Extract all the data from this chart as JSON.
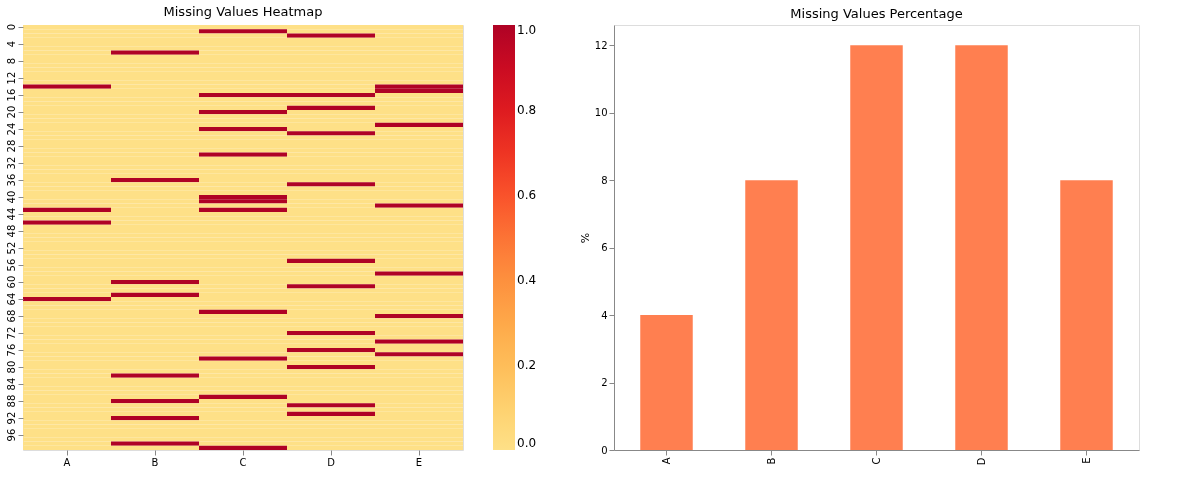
{
  "chart_data": [
    {
      "type": "heatmap",
      "title": "Missing Values Heatmap",
      "categories": [
        "A",
        "B",
        "C",
        "D",
        "E"
      ],
      "y_categories": [
        "0",
        null,
        null,
        null,
        "4",
        null,
        null,
        null,
        "8",
        null,
        null,
        null,
        "12",
        null,
        null,
        null,
        "16",
        null,
        null,
        null,
        "20",
        null,
        null,
        null,
        "24",
        null,
        null,
        null,
        "28",
        null,
        null,
        null,
        "32",
        null,
        null,
        null,
        "36",
        null,
        null,
        null,
        "40",
        null,
        null,
        null,
        "44",
        null,
        null,
        null,
        "48",
        null,
        null,
        null,
        "52",
        null,
        null,
        null,
        "56",
        null,
        null,
        null,
        "60",
        null,
        null,
        null,
        "64",
        null,
        null,
        null,
        "68",
        null,
        null,
        null,
        "72",
        null,
        null,
        null,
        "76",
        null,
        null,
        null,
        "80",
        null,
        null,
        null,
        "84",
        null,
        null,
        null,
        "88",
        null,
        null,
        null,
        "92",
        null,
        null,
        null,
        "96",
        null,
        null,
        null
      ],
      "cells": [
        [
          0,
          0,
          0,
          0,
          0
        ],
        [
          0,
          0,
          1,
          0,
          0
        ],
        [
          0,
          0,
          0,
          1,
          0
        ],
        [
          0,
          0,
          0,
          0,
          0
        ],
        [
          0,
          0,
          0,
          0,
          0
        ],
        [
          0,
          0,
          0,
          0,
          0
        ],
        [
          0,
          1,
          0,
          0,
          0
        ],
        [
          0,
          0,
          0,
          0,
          0
        ],
        [
          0,
          0,
          0,
          0,
          0
        ],
        [
          0,
          0,
          0,
          0,
          0
        ],
        [
          0,
          0,
          0,
          0,
          0
        ],
        [
          0,
          0,
          0,
          0,
          0
        ],
        [
          0,
          0,
          0,
          0,
          0
        ],
        [
          0,
          0,
          0,
          0,
          0
        ],
        [
          1,
          0,
          0,
          0,
          1
        ],
        [
          0,
          0,
          0,
          0,
          1
        ],
        [
          0,
          0,
          1,
          1,
          0
        ],
        [
          0,
          0,
          0,
          0,
          0
        ],
        [
          0,
          0,
          0,
          0,
          0
        ],
        [
          0,
          0,
          0,
          1,
          0
        ],
        [
          0,
          0,
          1,
          0,
          0
        ],
        [
          0,
          0,
          0,
          0,
          0
        ],
        [
          0,
          0,
          0,
          0,
          0
        ],
        [
          0,
          0,
          0,
          0,
          1
        ],
        [
          0,
          0,
          1,
          0,
          0
        ],
        [
          0,
          0,
          0,
          1,
          0
        ],
        [
          0,
          0,
          0,
          0,
          0
        ],
        [
          0,
          0,
          0,
          0,
          0
        ],
        [
          0,
          0,
          0,
          0,
          0
        ],
        [
          0,
          0,
          0,
          0,
          0
        ],
        [
          0,
          0,
          1,
          0,
          0
        ],
        [
          0,
          0,
          0,
          0,
          0
        ],
        [
          0,
          0,
          0,
          0,
          0
        ],
        [
          0,
          0,
          0,
          0,
          0
        ],
        [
          0,
          0,
          0,
          0,
          0
        ],
        [
          0,
          0,
          0,
          0,
          0
        ],
        [
          0,
          1,
          0,
          0,
          0
        ],
        [
          0,
          0,
          0,
          1,
          0
        ],
        [
          0,
          0,
          0,
          0,
          0
        ],
        [
          0,
          0,
          0,
          0,
          0
        ],
        [
          0,
          0,
          1,
          0,
          0
        ],
        [
          0,
          0,
          1,
          0,
          0
        ],
        [
          0,
          0,
          0,
          0,
          1
        ],
        [
          1,
          0,
          1,
          0,
          0
        ],
        [
          0,
          0,
          0,
          0,
          0
        ],
        [
          0,
          0,
          0,
          0,
          0
        ],
        [
          1,
          0,
          0,
          0,
          0
        ],
        [
          0,
          0,
          0,
          0,
          0
        ],
        [
          0,
          0,
          0,
          0,
          0
        ],
        [
          0,
          0,
          0,
          0,
          0
        ],
        [
          0,
          0,
          0,
          0,
          0
        ],
        [
          0,
          0,
          0,
          0,
          0
        ],
        [
          0,
          0,
          0,
          0,
          0
        ],
        [
          0,
          0,
          0,
          0,
          0
        ],
        [
          0,
          0,
          0,
          0,
          0
        ],
        [
          0,
          0,
          0,
          1,
          0
        ],
        [
          0,
          0,
          0,
          0,
          0
        ],
        [
          0,
          0,
          0,
          0,
          0
        ],
        [
          0,
          0,
          0,
          0,
          1
        ],
        [
          0,
          0,
          0,
          0,
          0
        ],
        [
          0,
          1,
          0,
          0,
          0
        ],
        [
          0,
          0,
          0,
          1,
          0
        ],
        [
          0,
          0,
          0,
          0,
          0
        ],
        [
          0,
          1,
          0,
          0,
          0
        ],
        [
          1,
          0,
          0,
          0,
          0
        ],
        [
          0,
          0,
          0,
          0,
          0
        ],
        [
          0,
          0,
          0,
          0,
          0
        ],
        [
          0,
          0,
          1,
          0,
          0
        ],
        [
          0,
          0,
          0,
          0,
          1
        ],
        [
          0,
          0,
          0,
          0,
          0
        ],
        [
          0,
          0,
          0,
          0,
          0
        ],
        [
          0,
          0,
          0,
          0,
          0
        ],
        [
          0,
          0,
          0,
          1,
          0
        ],
        [
          0,
          0,
          0,
          0,
          0
        ],
        [
          0,
          0,
          0,
          0,
          1
        ],
        [
          0,
          0,
          0,
          0,
          0
        ],
        [
          0,
          0,
          0,
          1,
          0
        ],
        [
          0,
          0,
          0,
          0,
          1
        ],
        [
          0,
          0,
          1,
          0,
          0
        ],
        [
          0,
          0,
          0,
          0,
          0
        ],
        [
          0,
          0,
          0,
          1,
          0
        ],
        [
          0,
          0,
          0,
          0,
          0
        ],
        [
          0,
          1,
          0,
          0,
          0
        ],
        [
          0,
          0,
          0,
          0,
          0
        ],
        [
          0,
          0,
          0,
          0,
          0
        ],
        [
          0,
          0,
          0,
          0,
          0
        ],
        [
          0,
          0,
          0,
          0,
          0
        ],
        [
          0,
          0,
          1,
          0,
          0
        ],
        [
          0,
          1,
          0,
          0,
          0
        ],
        [
          0,
          0,
          0,
          1,
          0
        ],
        [
          0,
          0,
          0,
          0,
          0
        ],
        [
          0,
          0,
          0,
          1,
          0
        ],
        [
          0,
          1,
          0,
          0,
          0
        ],
        [
          0,
          0,
          0,
          0,
          0
        ],
        [
          0,
          0,
          0,
          0,
          0
        ],
        [
          0,
          0,
          0,
          0,
          0
        ],
        [
          0,
          0,
          0,
          0,
          0
        ],
        [
          0,
          0,
          0,
          0,
          0
        ],
        [
          0,
          1,
          0,
          0,
          0
        ],
        [
          0,
          0,
          1,
          0,
          0
        ]
      ],
      "clim": [
        0,
        1
      ],
      "cticks": [
        {
          "value": 0,
          "label": "0.0"
        },
        {
          "value": 0.2,
          "label": "0.2"
        },
        {
          "value": 0.4,
          "label": "0.4"
        },
        {
          "value": 0.6,
          "label": "0.6"
        },
        {
          "value": 0.8,
          "label": "0.8"
        },
        {
          "value": 1,
          "label": "1.0"
        }
      ]
    },
    {
      "type": "bar",
      "title": "Missing Values Percentage",
      "ylabel": "%",
      "categories": [
        "A",
        "B",
        "C",
        "D",
        "E"
      ],
      "values": [
        4,
        8,
        12,
        12,
        8
      ],
      "color": "#ff7f50",
      "ylim": [
        0,
        12.6
      ],
      "yticks": [
        0,
        2,
        4,
        6,
        8,
        10,
        12
      ],
      "grid": false
    }
  ]
}
